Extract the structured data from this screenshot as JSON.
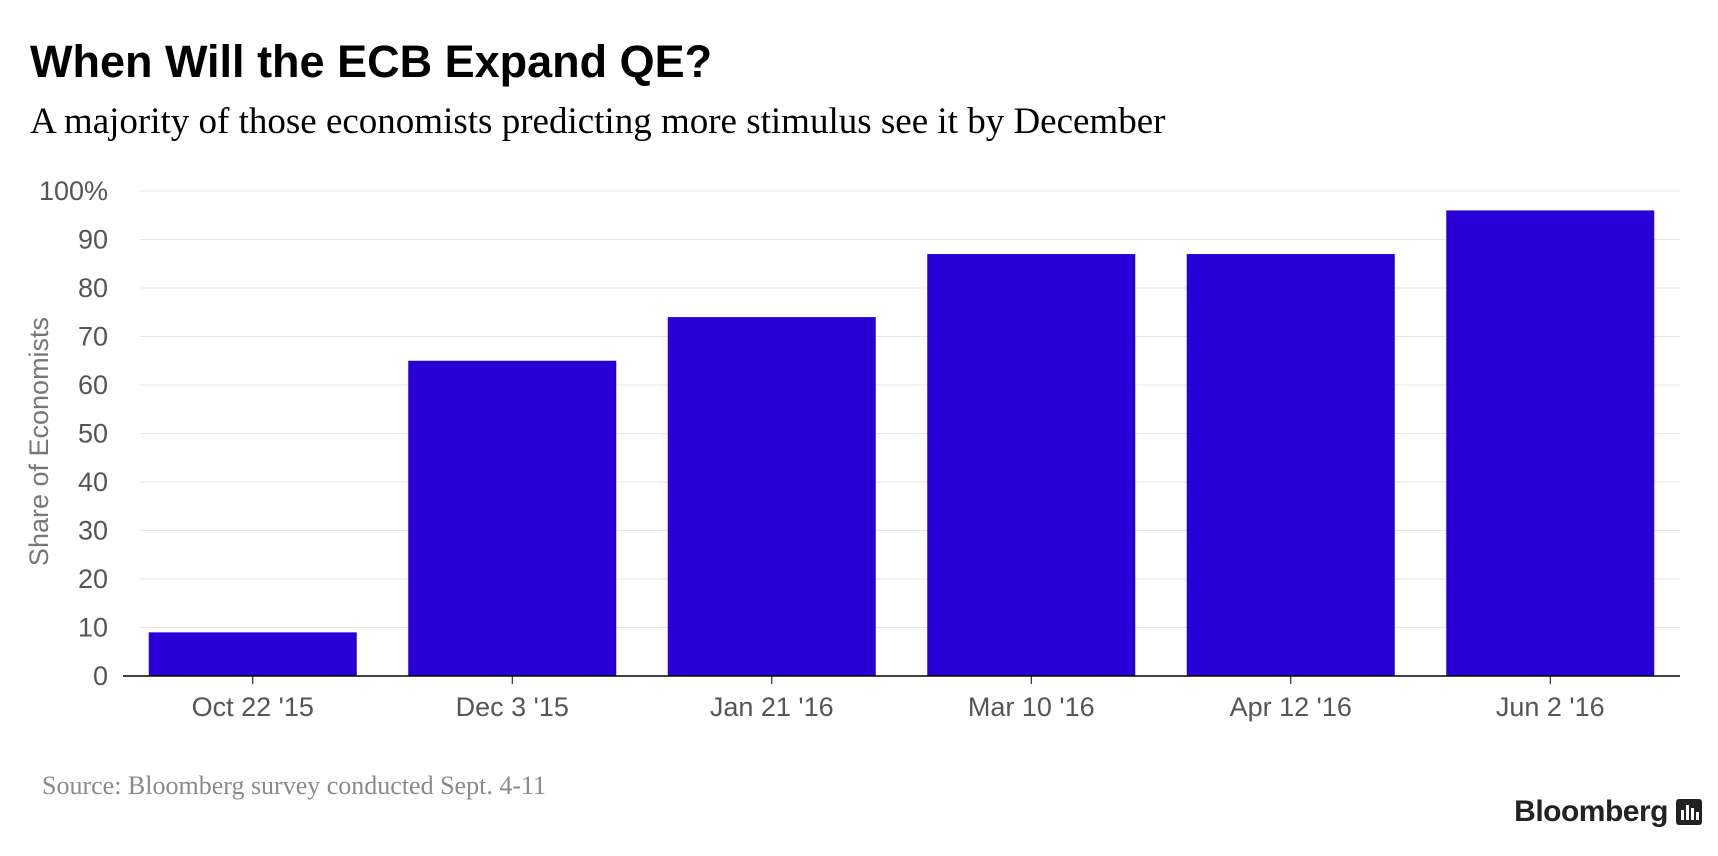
{
  "title": "When Will the ECB Expand QE?",
  "subtitle": "A majority of those economists predicting more stimulus see it by December",
  "source": "Source: Bloomberg survey conducted Sept. 4-11",
  "brand": "Bloomberg",
  "colors": {
    "bar": "#2800d7",
    "grid": "#e6e6e6",
    "axis": "#000000",
    "tick_text": "#555555",
    "ylabel_text": "#777777"
  },
  "chart_data": {
    "type": "bar",
    "categories": [
      "Oct 22 '15",
      "Dec 3 '15",
      "Jan 21 '16",
      "Mar 10 '16",
      "Apr 12 '16",
      "Jun 2 '16"
    ],
    "values": [
      9,
      65,
      74,
      87,
      87,
      96
    ],
    "ylabel": "Share of Economists",
    "xlabel": "",
    "ylim": [
      0,
      100
    ],
    "yticks": [
      0,
      10,
      20,
      30,
      40,
      50,
      60,
      70,
      80,
      90,
      100
    ],
    "ytick_labels": [
      "0",
      "10",
      "20",
      "30",
      "40",
      "50",
      "60",
      "70",
      "80",
      "90",
      "100%"
    ],
    "grid": true
  }
}
